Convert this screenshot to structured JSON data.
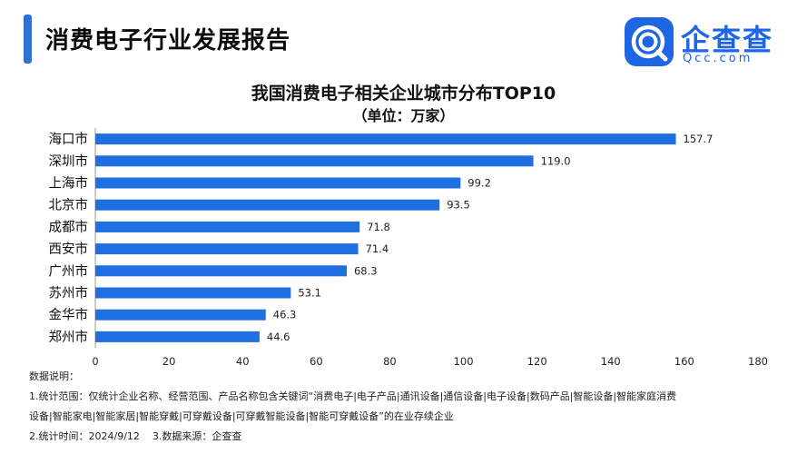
{
  "header": {
    "title": "消费电子行业发展报告"
  },
  "logo": {
    "name": "企查查",
    "sub": "Qcc.com",
    "color": "#1f66e5"
  },
  "chart_data": {
    "type": "bar",
    "orientation": "horizontal",
    "title": "我国消费电子相关企业城市分布TOP10",
    "subtitle": "（单位：万家）",
    "categories": [
      "海口市",
      "深圳市",
      "上海市",
      "北京市",
      "成都市",
      "西安市",
      "广州市",
      "苏州市",
      "金华市",
      "郑州市"
    ],
    "values": [
      157.7,
      119.0,
      99.2,
      93.5,
      71.8,
      71.4,
      68.3,
      53.1,
      46.3,
      44.6
    ],
    "value_labels": [
      "157.7",
      "119.0",
      "99.2",
      "93.5",
      "71.8",
      "71.4",
      "68.3",
      "53.1",
      "46.3",
      "44.6"
    ],
    "xlim": [
      0,
      180
    ],
    "xticks": [
      0,
      20,
      40,
      60,
      80,
      100,
      120,
      140,
      160,
      180
    ],
    "grid": false,
    "bar_color": "#1f6fe0"
  },
  "notes": {
    "heading": "数据说明：",
    "line1": "1.统计范围：仅统计企业名称、经营范围、产品名称包含关键词“消费电子|电子产品|通讯设备|通信设备|电子设备|数码产品|智能设备|智能家庭消费",
    "line2": "设备|智能家电|智能家居|智能穿戴|可穿戴设备|可穿戴智能设备|智能可穿戴设备”的在业存续企业",
    "line3": "2.统计时间：2024/9/12    3.数据来源：企查查"
  }
}
